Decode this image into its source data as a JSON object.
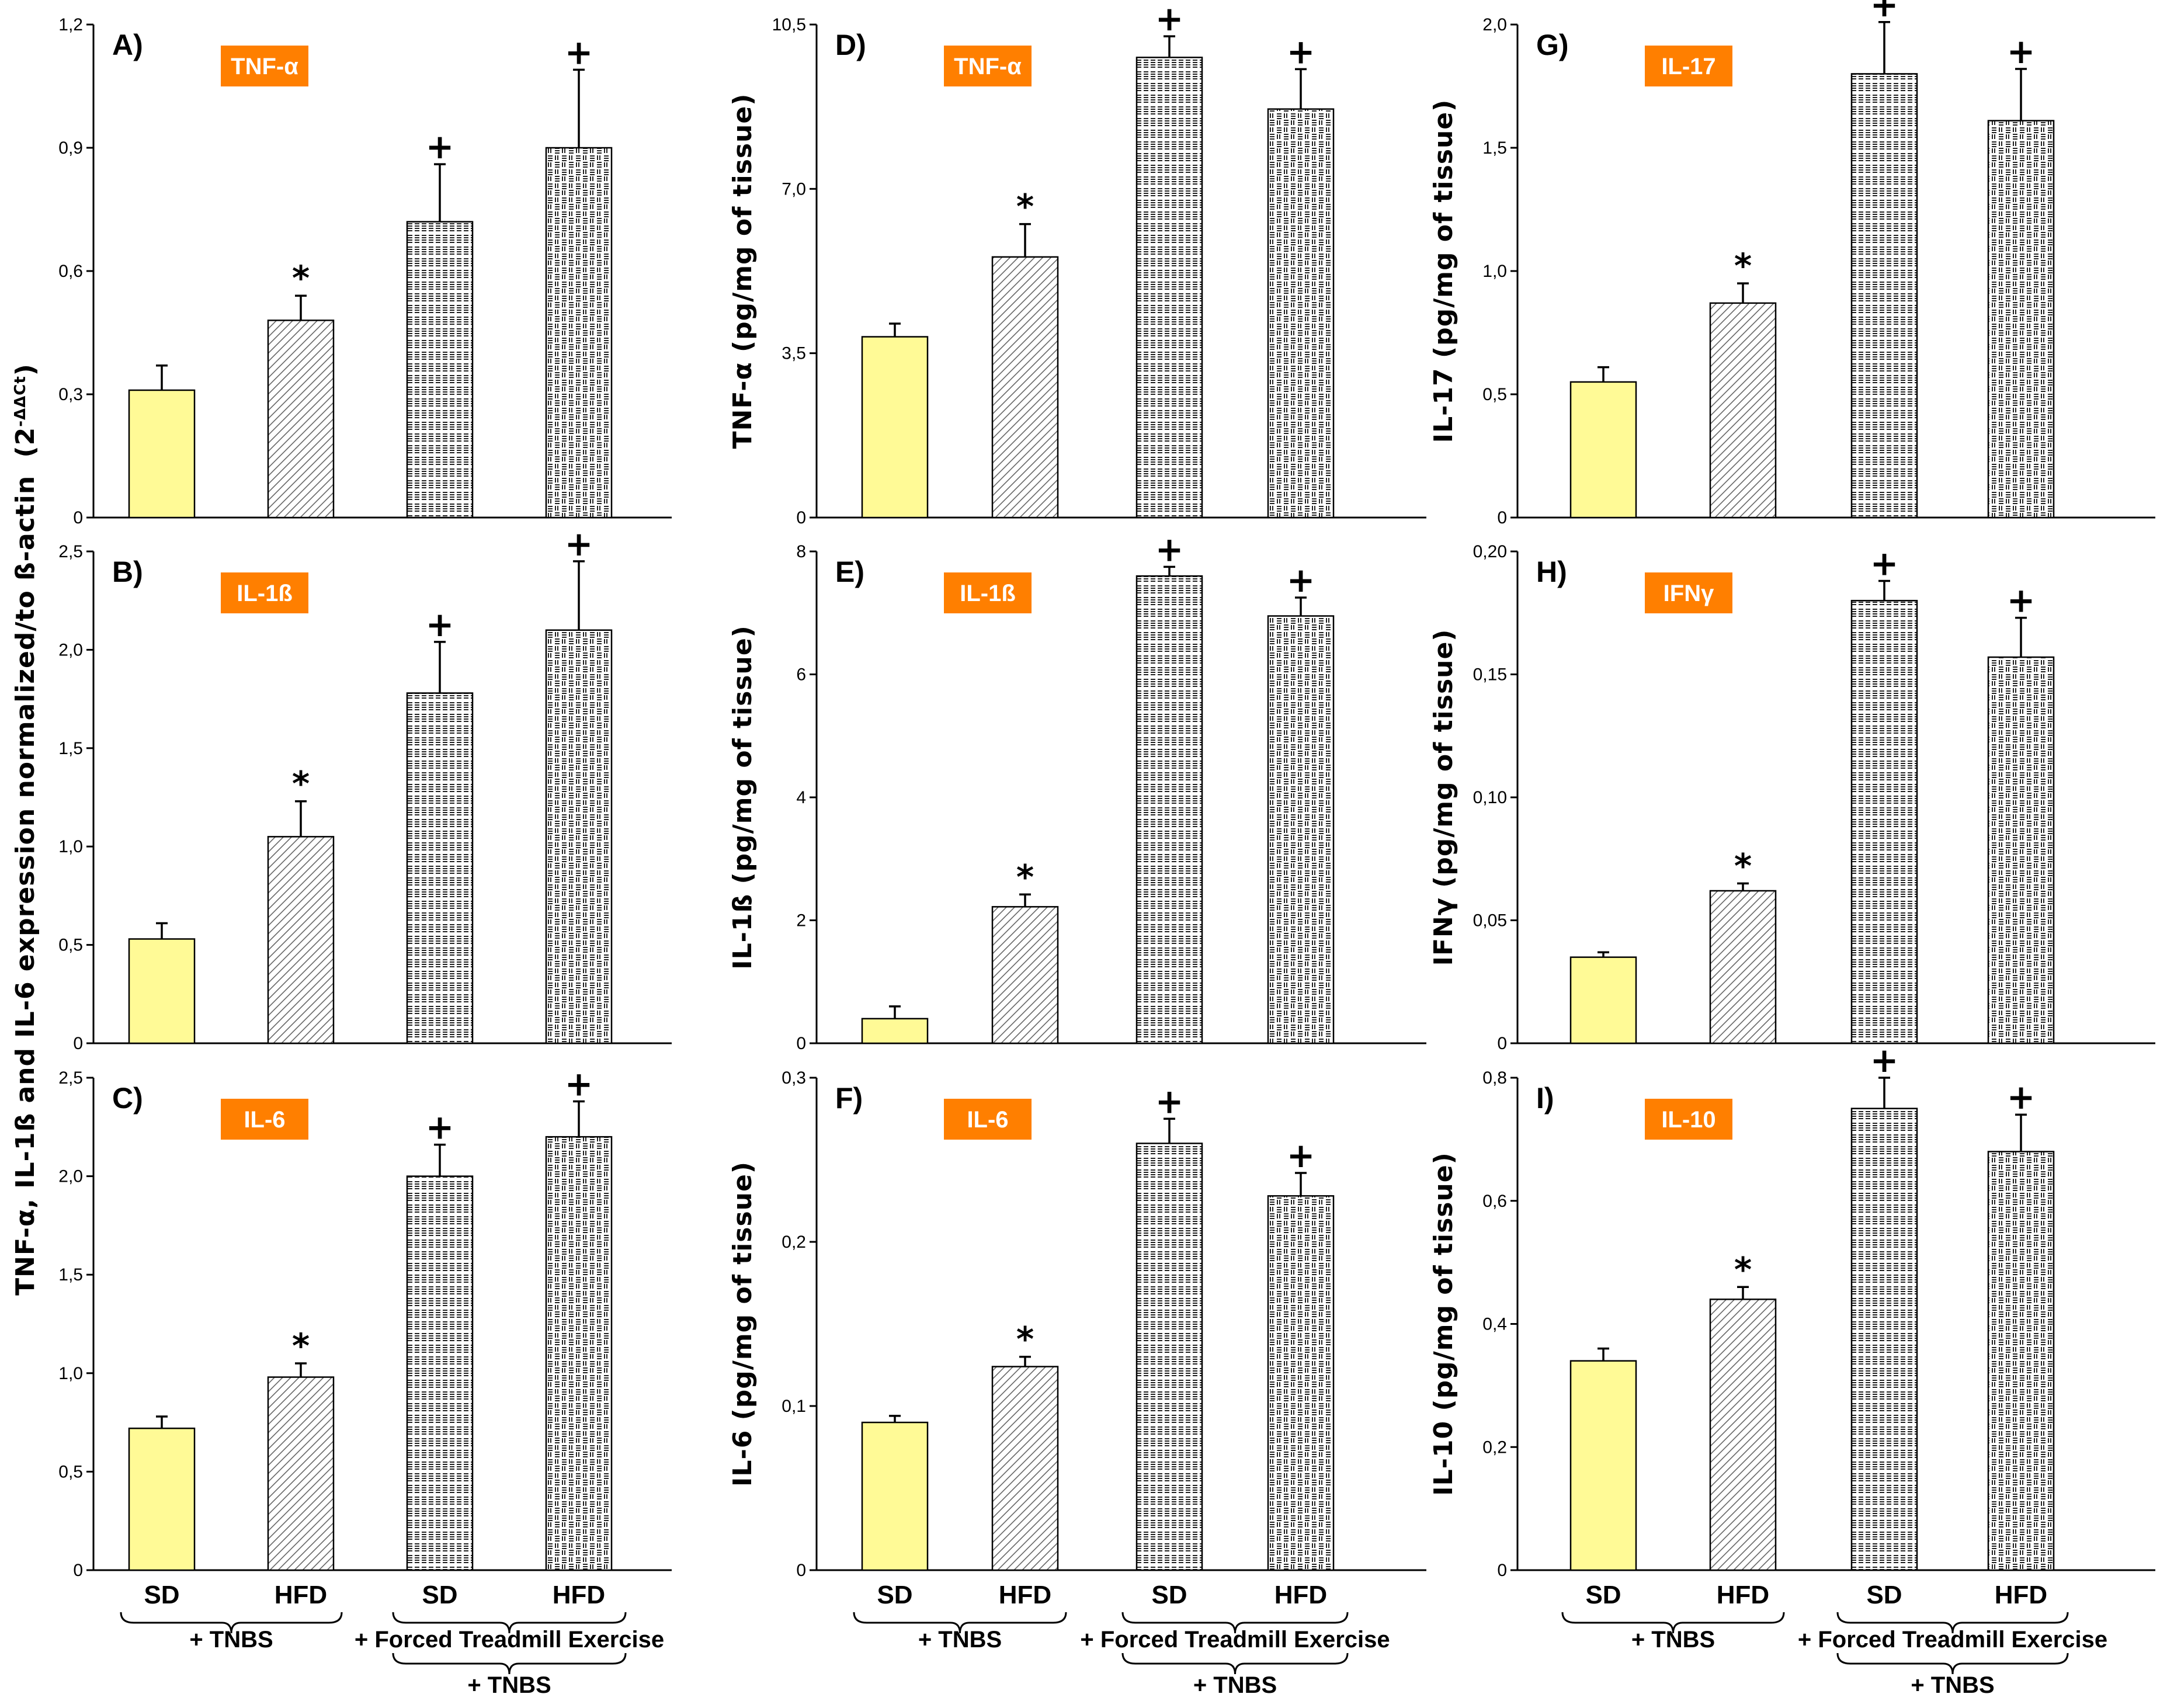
{
  "figure": {
    "colors": {
      "sd_fill": "#fffa96",
      "badge_bg": "#ff7f00",
      "badge_text": "#ffffff",
      "axis": "#000000"
    },
    "markers": {
      "star": "*",
      "plus": "+"
    },
    "groups": {
      "tnbs": "+ TNBS",
      "exercise": "+ Forced Treadmill Exercise",
      "exercise_tnbs": "+ TNBS"
    },
    "col1_ylabel": "TNF-α, IL-1ß and IL-6 expression normalized/to ß-actin",
    "col1_ylabel_suffix": "(2",
    "col1_ylabel_sup": "-ΔΔCt",
    "col1_ylabel_end": ")"
  },
  "chart_data": [
    {
      "id": "A",
      "type": "bar",
      "panel_label": "A)",
      "badge": "TNF-α",
      "categories": [
        "SD",
        "HFD",
        "SD",
        "HFD"
      ],
      "values": [
        0.31,
        0.48,
        0.72,
        0.9
      ],
      "errors": [
        0.06,
        0.06,
        0.14,
        0.19
      ],
      "markers": [
        "",
        "*",
        "+",
        "+"
      ],
      "ylim": [
        0,
        1.2
      ],
      "yticks": [
        "0",
        "0,3",
        "0,6",
        "0,9",
        "1,2"
      ],
      "ylabel": ""
    },
    {
      "id": "B",
      "type": "bar",
      "panel_label": "B)",
      "badge": "IL-1ß",
      "categories": [
        "SD",
        "HFD",
        "SD",
        "HFD"
      ],
      "values": [
        0.53,
        1.05,
        1.78,
        2.1
      ],
      "errors": [
        0.08,
        0.18,
        0.26,
        0.35
      ],
      "markers": [
        "",
        "*",
        "+",
        "+"
      ],
      "ylim": [
        0,
        2.5
      ],
      "yticks": [
        "0",
        "0,5",
        "1,0",
        "1,5",
        "2,0",
        "2,5"
      ],
      "ylabel": ""
    },
    {
      "id": "C",
      "type": "bar",
      "panel_label": "C)",
      "badge": "IL-6",
      "categories": [
        "SD",
        "HFD",
        "SD",
        "HFD"
      ],
      "values": [
        0.72,
        0.98,
        2.0,
        2.2
      ],
      "errors": [
        0.06,
        0.07,
        0.16,
        0.18
      ],
      "markers": [
        "",
        "*",
        "+",
        "+"
      ],
      "ylim": [
        0,
        2.5
      ],
      "yticks": [
        "0",
        "0,5",
        "1,0",
        "1,5",
        "2,0",
        "2,5"
      ],
      "ylabel": ""
    },
    {
      "id": "D",
      "type": "bar",
      "panel_label": "D)",
      "badge": "TNF-α",
      "categories": [
        "SD",
        "HFD",
        "SD",
        "HFD"
      ],
      "values": [
        3.85,
        5.55,
        9.8,
        8.7
      ],
      "errors": [
        0.28,
        0.7,
        0.45,
        0.85
      ],
      "markers": [
        "",
        "*",
        "+",
        "+"
      ],
      "ylim": [
        0,
        10.5
      ],
      "yticks": [
        "0",
        "3,5",
        "7,0",
        "10,5"
      ],
      "ylabel": "TNF-α (pg/mg of tissue)"
    },
    {
      "id": "E",
      "type": "bar",
      "panel_label": "E)",
      "badge": "IL-1ß",
      "categories": [
        "SD",
        "HFD",
        "SD",
        "HFD"
      ],
      "values": [
        0.4,
        2.22,
        7.6,
        6.95
      ],
      "errors": [
        0.2,
        0.2,
        0.15,
        0.3
      ],
      "markers": [
        "",
        "*",
        "+",
        "+"
      ],
      "ylim": [
        0,
        8
      ],
      "yticks": [
        "0",
        "2",
        "4",
        "6",
        "8"
      ],
      "ylabel": "IL-1ß (pg/mg of tissue)"
    },
    {
      "id": "F",
      "type": "bar",
      "panel_label": "F)",
      "badge": "IL-6",
      "categories": [
        "SD",
        "HFD",
        "SD",
        "HFD"
      ],
      "values": [
        0.09,
        0.124,
        0.26,
        0.228
      ],
      "errors": [
        0.004,
        0.006,
        0.015,
        0.014
      ],
      "markers": [
        "",
        "*",
        "+",
        "+"
      ],
      "ylim": [
        0,
        0.3
      ],
      "yticks": [
        "0",
        "0,1",
        "0,2",
        "0,3"
      ],
      "ylabel": "IL-6 (pg/mg of tissue)"
    },
    {
      "id": "G",
      "type": "bar",
      "panel_label": "G)",
      "badge": "IL-17",
      "categories": [
        "SD",
        "HFD",
        "SD",
        "HFD"
      ],
      "values": [
        0.55,
        0.87,
        1.8,
        1.61
      ],
      "errors": [
        0.06,
        0.08,
        0.21,
        0.21
      ],
      "markers": [
        "",
        "*",
        "+",
        "+"
      ],
      "ylim": [
        0,
        2.0
      ],
      "yticks": [
        "0",
        "0,5",
        "1,0",
        "1,5",
        "2,0"
      ],
      "ylabel": "IL-17 (pg/mg of tissue)"
    },
    {
      "id": "H",
      "type": "bar",
      "panel_label": "H)",
      "badge": "IFNγ",
      "categories": [
        "SD",
        "HFD",
        "SD",
        "HFD"
      ],
      "values": [
        0.035,
        0.062,
        0.18,
        0.157
      ],
      "errors": [
        0.002,
        0.003,
        0.008,
        0.016
      ],
      "markers": [
        "",
        "*",
        "+",
        "+"
      ],
      "ylim": [
        0,
        0.2
      ],
      "yticks": [
        "0",
        "0,05",
        "0,10",
        "0,15",
        "0,20"
      ],
      "ylabel": "IFNγ (pg/mg of tissue)"
    },
    {
      "id": "I",
      "type": "bar",
      "panel_label": "I)",
      "badge": "IL-10",
      "categories": [
        "SD",
        "HFD",
        "SD",
        "HFD"
      ],
      "values": [
        0.34,
        0.44,
        0.75,
        0.68
      ],
      "errors": [
        0.02,
        0.02,
        0.05,
        0.06
      ],
      "markers": [
        "",
        "*",
        "+",
        "+"
      ],
      "ylim": [
        0,
        0.8
      ],
      "yticks": [
        "0",
        "0,2",
        "0,4",
        "0,6",
        "0,8"
      ],
      "ylabel": "IL-10 (pg/mg of tissue)"
    }
  ]
}
